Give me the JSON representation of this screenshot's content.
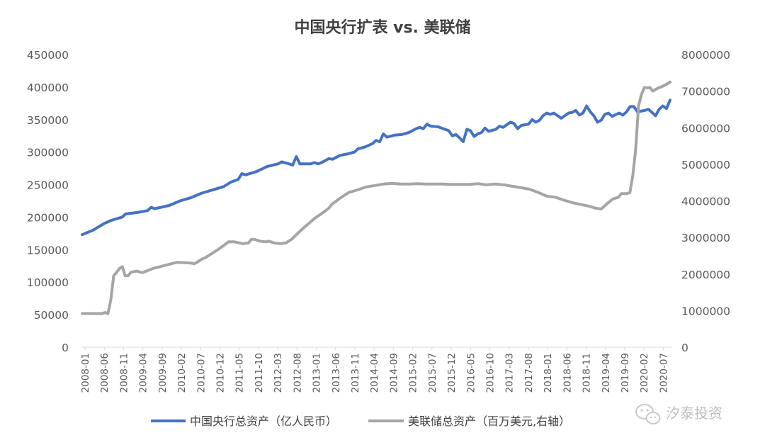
{
  "chart_data": {
    "type": "line",
    "title": "中国央行扩表 vs. 美联储",
    "left_axis": {
      "min": 0,
      "max": 450000,
      "step": 50000,
      "ticks": [
        "0",
        "50000",
        "100000",
        "150000",
        "200000",
        "250000",
        "300000",
        "350000",
        "400000",
        "450000"
      ]
    },
    "right_axis": {
      "min": 0,
      "max": 8000000,
      "step": 1000000,
      "ticks": [
        "0",
        "1000000",
        "2000000",
        "3000000",
        "4000000",
        "5000000",
        "6000000",
        "7000000",
        "8000000"
      ]
    },
    "x_tick_labels": [
      "2008-01",
      "2008-06",
      "2008-11",
      "2009-04",
      "2009-09",
      "2010-02",
      "2010-07",
      "2010-12",
      "2011-05",
      "2011-10",
      "2012-03",
      "2012-08",
      "2013-01",
      "2013-06",
      "2013-11",
      "2014-04",
      "2014-09",
      "2015-02",
      "2015-07",
      "2015-12",
      "2016-05",
      "2016-10",
      "2017-03",
      "2017-08",
      "2018-01",
      "2018-06",
      "2018-11",
      "2019-04",
      "2019-09",
      "2020-02",
      "2020-07"
    ],
    "months": 157,
    "grid": false,
    "legend_position": "bottom",
    "series": [
      {
        "name": "中国央行总资产（亿人民币）",
        "axis": "left",
        "color": "#4472C4",
        "knots": [
          [
            0,
            173000
          ],
          [
            3,
            180000
          ],
          [
            6,
            190000
          ],
          [
            8,
            195000
          ],
          [
            11,
            200000
          ],
          [
            12,
            205000
          ],
          [
            15,
            207000
          ],
          [
            18,
            210000
          ],
          [
            19,
            215000
          ],
          [
            20,
            213000
          ],
          [
            24,
            218000
          ],
          [
            27,
            225000
          ],
          [
            30,
            230000
          ],
          [
            33,
            237000
          ],
          [
            36,
            242000
          ],
          [
            39,
            247000
          ],
          [
            41,
            254000
          ],
          [
            43,
            258000
          ],
          [
            44,
            267000
          ],
          [
            45,
            265000
          ],
          [
            48,
            270000
          ],
          [
            51,
            278000
          ],
          [
            54,
            282000
          ],
          [
            55,
            285000
          ],
          [
            57,
            282000
          ],
          [
            58,
            280000
          ],
          [
            59,
            293000
          ],
          [
            60,
            282000
          ],
          [
            63,
            282000
          ],
          [
            64,
            284000
          ],
          [
            65,
            282000
          ],
          [
            66,
            284000
          ],
          [
            68,
            290000
          ],
          [
            69,
            289000
          ],
          [
            71,
            295000
          ],
          [
            73,
            297000
          ],
          [
            75,
            300000
          ],
          [
            76,
            305000
          ],
          [
            78,
            308000
          ],
          [
            80,
            313000
          ],
          [
            81,
            318000
          ],
          [
            82,
            316000
          ],
          [
            83,
            328000
          ],
          [
            84,
            323000
          ],
          [
            86,
            326000
          ],
          [
            88,
            327000
          ],
          [
            90,
            330000
          ],
          [
            92,
            336000
          ],
          [
            93,
            338000
          ],
          [
            94,
            336000
          ],
          [
            95,
            343000
          ],
          [
            96,
            340000
          ],
          [
            98,
            339000
          ],
          [
            101,
            333000
          ],
          [
            102,
            325000
          ],
          [
            103,
            327000
          ],
          [
            104,
            322000
          ],
          [
            105,
            316000
          ],
          [
            106,
            335000
          ],
          [
            107,
            333000
          ],
          [
            108,
            324000
          ],
          [
            109,
            328000
          ],
          [
            110,
            330000
          ],
          [
            111,
            337000
          ],
          [
            112,
            332000
          ],
          [
            114,
            335000
          ],
          [
            115,
            340000
          ],
          [
            116,
            338000
          ],
          [
            117,
            342000
          ],
          [
            118,
            346000
          ],
          [
            119,
            344000
          ],
          [
            120,
            336000
          ],
          [
            121,
            341000
          ],
          [
            123,
            343000
          ],
          [
            124,
            350000
          ],
          [
            125,
            346000
          ],
          [
            126,
            349000
          ],
          [
            127,
            356000
          ],
          [
            128,
            360000
          ],
          [
            129,
            358000
          ],
          [
            130,
            360000
          ],
          [
            131,
            356000
          ],
          [
            132,
            352000
          ],
          [
            133,
            356000
          ],
          [
            134,
            360000
          ],
          [
            135,
            361000
          ],
          [
            136,
            364000
          ],
          [
            137,
            357000
          ],
          [
            138,
            360000
          ],
          [
            139,
            371000
          ],
          [
            140,
            362000
          ],
          [
            141,
            356000
          ],
          [
            142,
            346000
          ],
          [
            143,
            349000
          ],
          [
            144,
            358000
          ],
          [
            145,
            360000
          ],
          [
            146,
            355000
          ],
          [
            148,
            360000
          ],
          [
            149,
            357000
          ],
          [
            150,
            362000
          ],
          [
            151,
            370000
          ],
          [
            152,
            370000
          ],
          [
            153,
            362000
          ],
          [
            155,
            364000
          ],
          [
            156,
            366000
          ],
          [
            157,
            361000
          ],
          [
            158,
            356000
          ],
          [
            159,
            366000
          ],
          [
            160,
            371000
          ],
          [
            161,
            367000
          ],
          [
            162,
            380000
          ]
        ]
      },
      {
        "name": "美联储总资产（百万美元,右轴）",
        "axis": "right",
        "color": "#A5A5A5",
        "knots": [
          [
            0,
            920000
          ],
          [
            7,
            920000
          ],
          [
            8,
            950000
          ],
          [
            9,
            920000
          ],
          [
            10,
            1300000
          ],
          [
            11,
            1950000
          ],
          [
            12,
            2050000
          ],
          [
            13,
            2150000
          ],
          [
            14,
            2200000
          ],
          [
            15,
            1950000
          ],
          [
            16,
            1950000
          ],
          [
            17,
            2050000
          ],
          [
            19,
            2080000
          ],
          [
            20,
            2060000
          ],
          [
            21,
            2040000
          ],
          [
            23,
            2100000
          ],
          [
            25,
            2160000
          ],
          [
            28,
            2220000
          ],
          [
            31,
            2280000
          ],
          [
            33,
            2320000
          ],
          [
            36,
            2310000
          ],
          [
            38,
            2300000
          ],
          [
            39,
            2280000
          ],
          [
            40,
            2320000
          ],
          [
            42,
            2420000
          ],
          [
            43,
            2450000
          ],
          [
            45,
            2550000
          ],
          [
            47,
            2650000
          ],
          [
            49,
            2760000
          ],
          [
            51,
            2880000
          ],
          [
            53,
            2880000
          ],
          [
            55,
            2850000
          ],
          [
            56,
            2830000
          ],
          [
            58,
            2850000
          ],
          [
            59,
            2950000
          ],
          [
            60,
            2950000
          ],
          [
            62,
            2900000
          ],
          [
            64,
            2880000
          ],
          [
            65,
            2900000
          ],
          [
            67,
            2850000
          ],
          [
            69,
            2830000
          ],
          [
            71,
            2850000
          ],
          [
            73,
            2950000
          ],
          [
            75,
            3100000
          ],
          [
            77,
            3250000
          ],
          [
            79,
            3380000
          ],
          [
            81,
            3520000
          ],
          [
            84,
            3680000
          ],
          [
            86,
            3800000
          ],
          [
            87,
            3900000
          ],
          [
            90,
            4080000
          ],
          [
            93,
            4230000
          ],
          [
            96,
            4300000
          ],
          [
            99,
            4380000
          ],
          [
            102,
            4420000
          ],
          [
            105,
            4460000
          ],
          [
            108,
            4480000
          ],
          [
            111,
            4460000
          ],
          [
            114,
            4460000
          ],
          [
            117,
            4470000
          ],
          [
            120,
            4460000
          ],
          [
            123,
            4460000
          ],
          [
            126,
            4460000
          ],
          [
            129,
            4450000
          ],
          [
            132,
            4450000
          ],
          [
            135,
            4450000
          ],
          [
            138,
            4470000
          ],
          [
            141,
            4440000
          ],
          [
            144,
            4460000
          ],
          [
            147,
            4440000
          ],
          [
            150,
            4400000
          ],
          [
            153,
            4360000
          ],
          [
            156,
            4320000
          ],
          [
            159,
            4230000
          ],
          [
            162,
            4130000
          ],
          [
            165,
            4100000
          ],
          [
            168,
            4020000
          ],
          [
            171,
            3950000
          ],
          [
            174,
            3900000
          ],
          [
            177,
            3850000
          ],
          [
            179,
            3800000
          ],
          [
            181,
            3780000
          ],
          [
            183,
            3920000
          ],
          [
            185,
            4050000
          ],
          [
            187,
            4100000
          ],
          [
            188,
            4200000
          ],
          [
            190,
            4200000
          ],
          [
            191,
            4230000
          ],
          [
            192,
            4700000
          ],
          [
            193,
            5400000
          ],
          [
            194,
            6600000
          ],
          [
            195,
            6900000
          ],
          [
            196,
            7100000
          ],
          [
            197,
            7090000
          ],
          [
            198,
            7100000
          ],
          [
            199,
            7000000
          ],
          [
            200,
            7050000
          ],
          [
            201,
            7090000
          ],
          [
            202,
            7120000
          ],
          [
            203,
            7160000
          ],
          [
            204,
            7200000
          ],
          [
            205,
            7250000
          ]
        ]
      }
    ]
  },
  "watermark": {
    "text": "汐泰投资",
    "icon": "wechat-icon"
  }
}
